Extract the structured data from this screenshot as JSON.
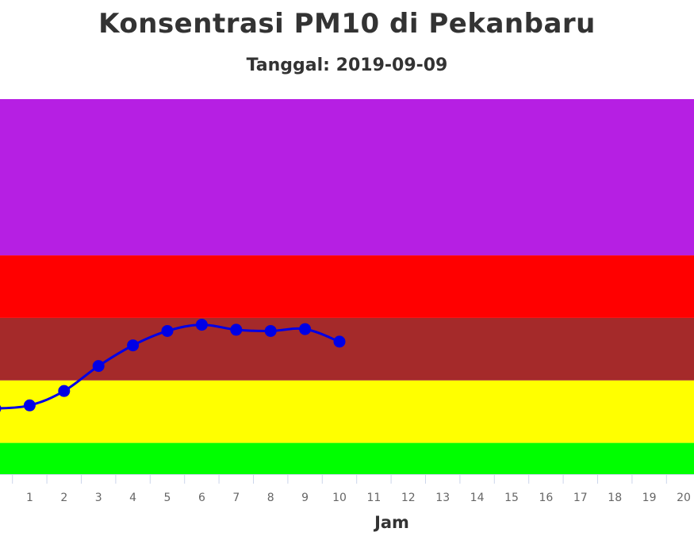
{
  "chart_data": {
    "type": "line",
    "title": "Konsentrasi PM10 di Pekanbaru",
    "subtitle": "Tanggal: 2019-09-09",
    "xlabel": "Jam",
    "ylabel": "",
    "x_ticks": [
      "1",
      "2",
      "3",
      "4",
      "5",
      "6",
      "7",
      "8",
      "9",
      "10",
      "11",
      "12",
      "13",
      "14",
      "15",
      "16",
      "17",
      "18",
      "19",
      "20"
    ],
    "xlim": [
      0,
      20
    ],
    "ylim": [
      0,
      600
    ],
    "grid": false,
    "bands": [
      {
        "from": 0,
        "to": 50,
        "color": "#00ff00"
      },
      {
        "from": 50,
        "to": 150,
        "color": "#ffff00"
      },
      {
        "from": 150,
        "to": 250,
        "color": "#a52a2a"
      },
      {
        "from": 250,
        "to": 350,
        "color": "#ff0000"
      },
      {
        "from": 350,
        "to": 600,
        "color": "#b61fe3"
      }
    ],
    "series": [
      {
        "color": "#0000e6",
        "x": [
          0,
          1,
          2,
          3,
          4,
          5,
          6,
          7,
          8,
          9,
          10
        ],
        "values": [
          105,
          110,
          133,
          173,
          206,
          229,
          239,
          231,
          229,
          232,
          212
        ]
      }
    ]
  }
}
